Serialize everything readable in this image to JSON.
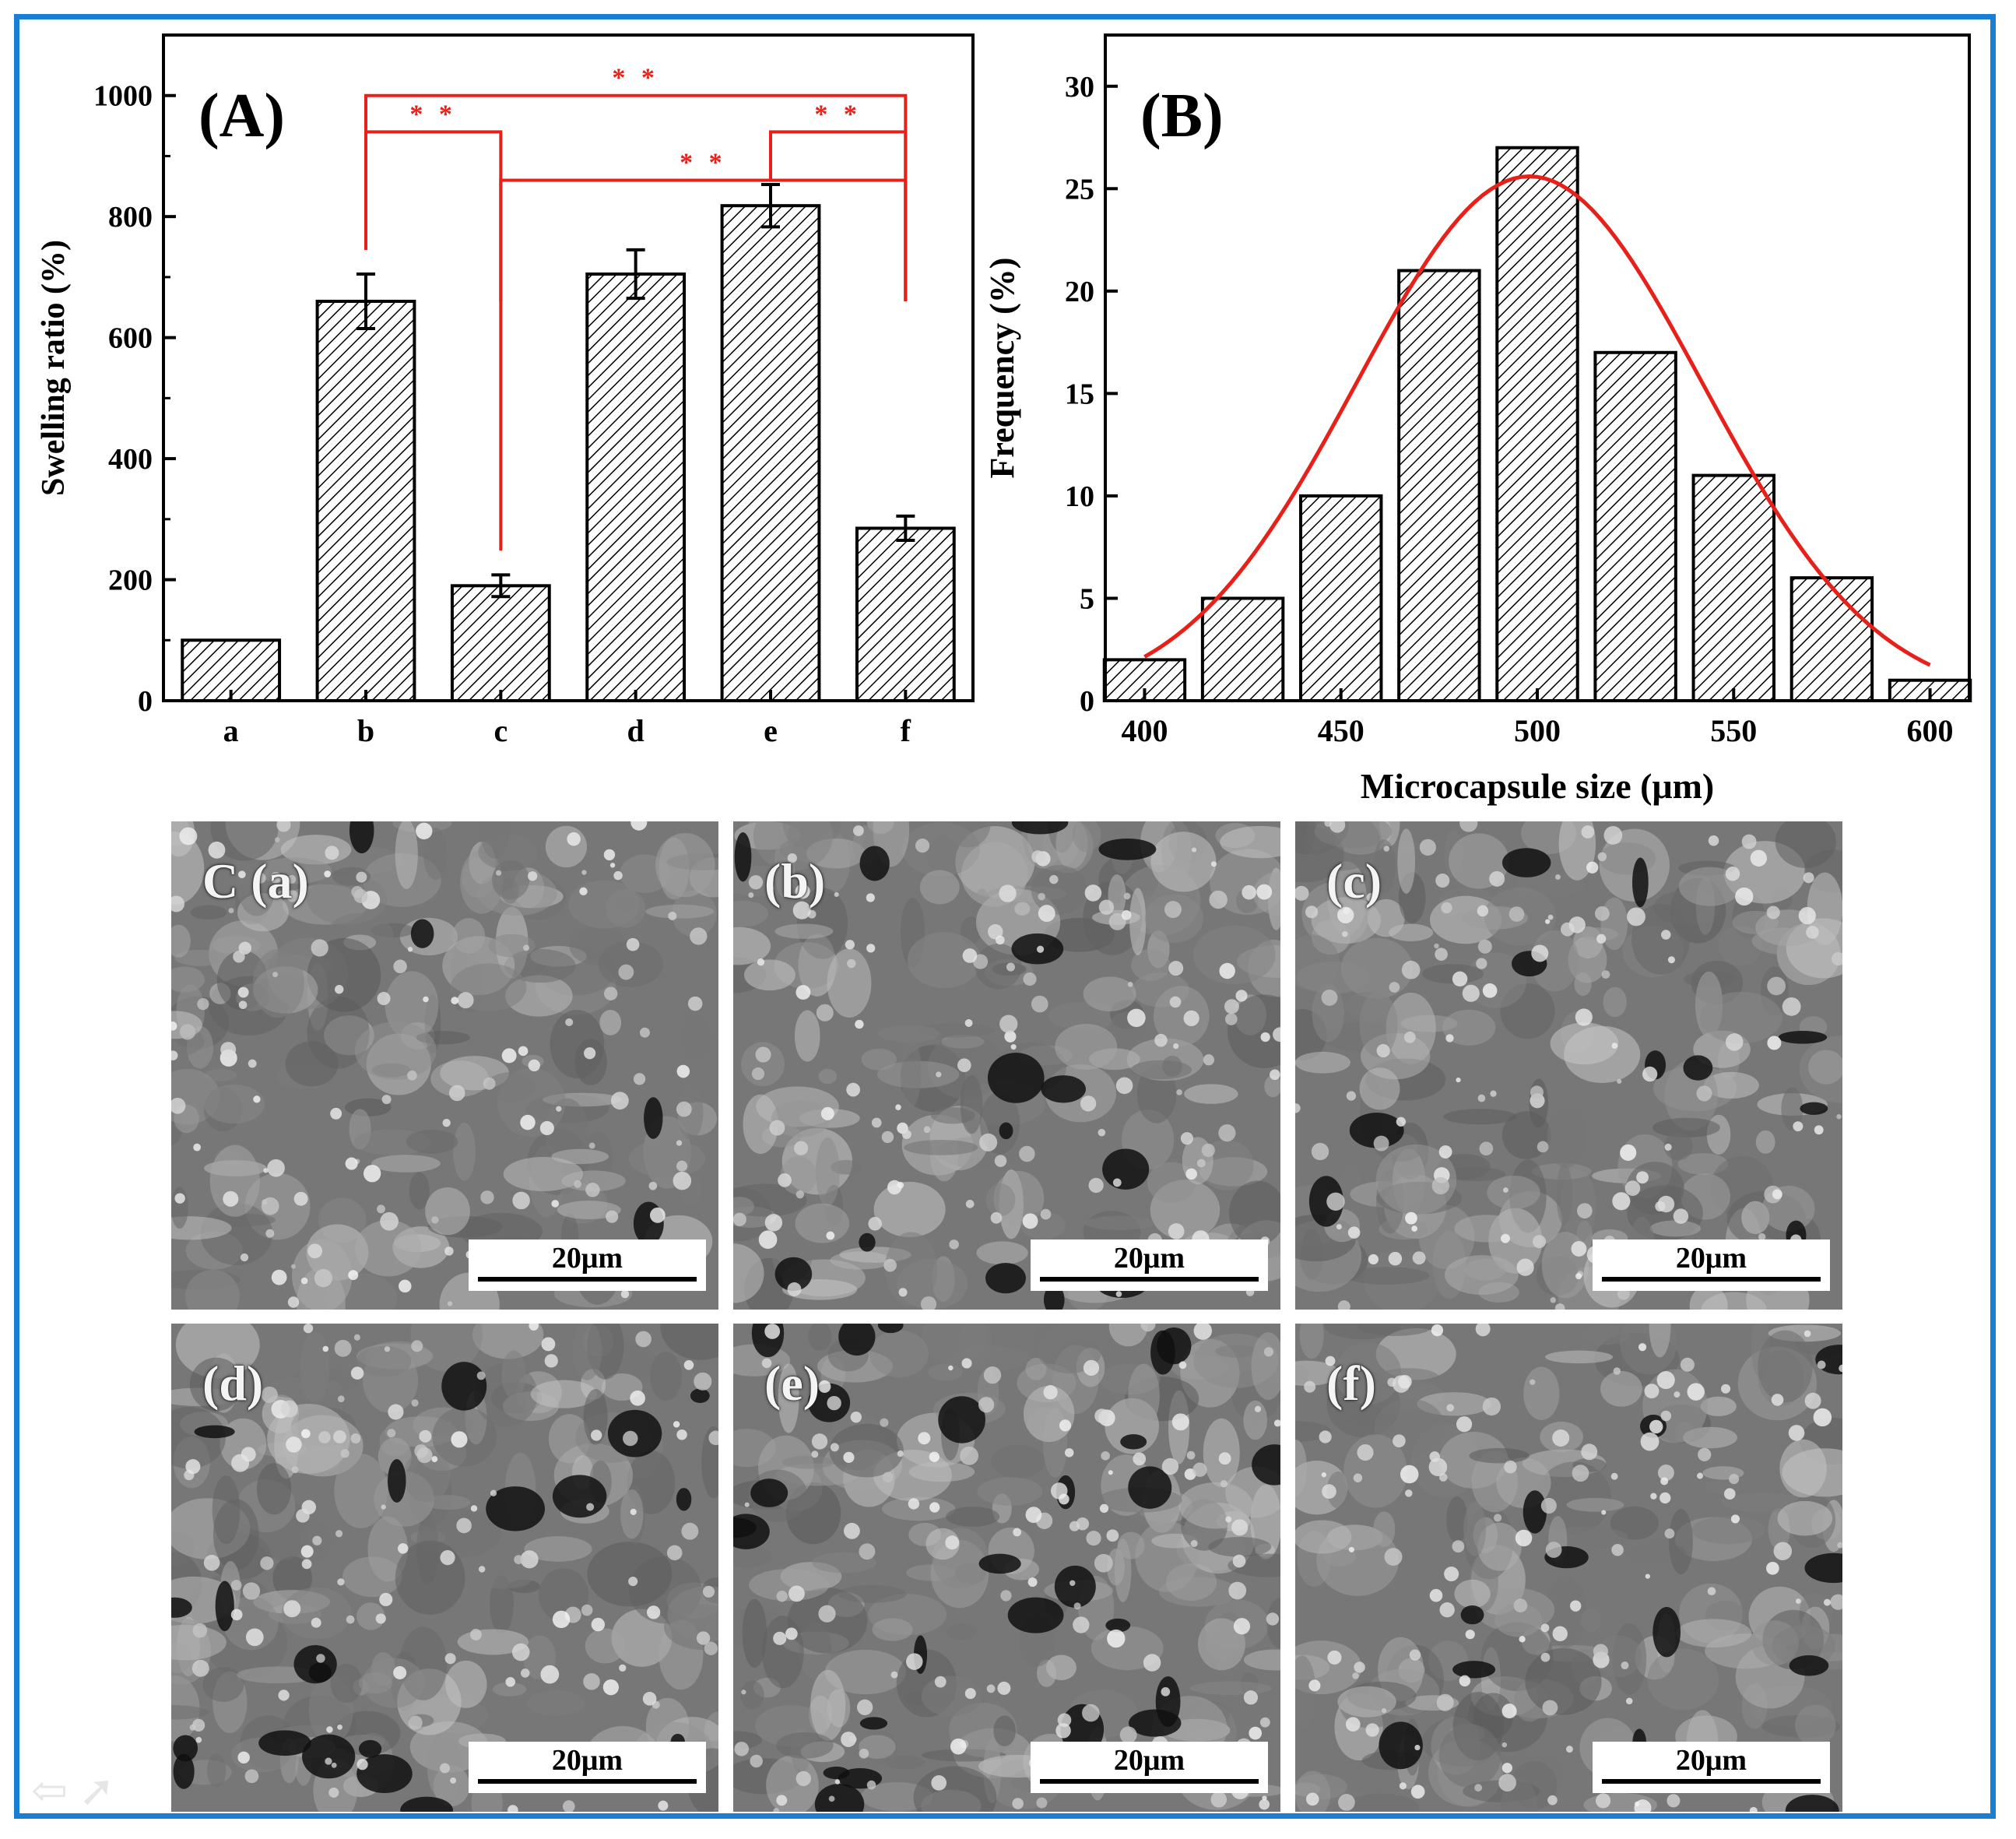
{
  "chart_data": [
    {
      "type": "bar",
      "panel_label": "(A)",
      "categories": [
        "a",
        "b",
        "c",
        "d",
        "e",
        "f"
      ],
      "values": [
        100,
        660,
        190,
        705,
        818,
        285
      ],
      "errors": [
        0,
        45,
        18,
        40,
        35,
        20
      ],
      "ylabel": "Swelling ratio (%)",
      "xlabel": "",
      "ylim": [
        0,
        1100
      ],
      "yticks": [
        "0",
        "200",
        "400",
        "600",
        "800",
        "1000"
      ],
      "significance": [
        {
          "from": "b",
          "to": "f",
          "label": "* *"
        },
        {
          "from": "b",
          "to": "c",
          "label": "* *"
        },
        {
          "from": "c",
          "to": "f",
          "label": "* *"
        },
        {
          "from": "e",
          "to": "f",
          "label": "* *"
        }
      ],
      "colors": {
        "bars": "#000000",
        "significance": "#e8201a"
      }
    },
    {
      "type": "bar",
      "panel_label": "(B)",
      "x": [
        400,
        425,
        450,
        475,
        500,
        525,
        550,
        575,
        600
      ],
      "values": [
        2,
        5,
        10,
        21,
        27,
        17,
        11,
        6,
        1
      ],
      "fit": {
        "type": "gaussian",
        "mean": 498,
        "sd": 44,
        "peak": 25.6,
        "color": "#e8201a"
      },
      "xlabel": "Microcapsule size (μm)",
      "ylabel": "Frequency (%)",
      "xlim": [
        390,
        610
      ],
      "ylim": [
        0,
        32.5
      ],
      "xticks": [
        "400",
        "450",
        "500",
        "550",
        "600"
      ],
      "yticks": [
        "0",
        "5",
        "10",
        "15",
        "20",
        "25",
        "30"
      ]
    }
  ],
  "sem_panels": [
    {
      "id": "a",
      "label": "C (a)",
      "scalebar": "20μm"
    },
    {
      "id": "b",
      "label": "(b)",
      "scalebar": "20μm"
    },
    {
      "id": "c",
      "label": "(c)",
      "scalebar": "20μm"
    },
    {
      "id": "d",
      "label": "(d)",
      "scalebar": "20μm"
    },
    {
      "id": "e",
      "label": "(e)",
      "scalebar": "20μm"
    },
    {
      "id": "f",
      "label": "(f)",
      "scalebar": "20μm"
    }
  ],
  "colors": {
    "frame": "#1a7fd4"
  }
}
